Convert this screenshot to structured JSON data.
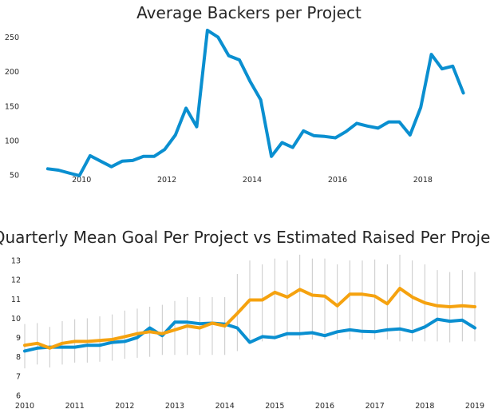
{
  "chart_data": [
    {
      "type": "line",
      "title": "Average Backers per Project",
      "xlabel": "",
      "ylabel": "",
      "xlim": [
        2008.65,
        2019.2
      ],
      "ylim": [
        35,
        268
      ],
      "grid": false,
      "xticks": [
        2010,
        2012,
        2014,
        2016,
        2018
      ],
      "yticks": [
        50,
        100,
        150,
        200,
        250
      ],
      "colors": {
        "line": "#0a8fd0"
      },
      "series": [
        {
          "x": [
            2009.21,
            2009.46,
            2009.7,
            2009.95,
            2010.2,
            2010.45,
            2010.7,
            2010.95,
            2011.2,
            2011.45,
            2011.7,
            2011.95,
            2012.2,
            2012.45,
            2012.7,
            2012.95,
            2013.2,
            2013.45,
            2013.7,
            2013.95,
            2014.2,
            2014.45,
            2014.7,
            2014.95,
            2015.2,
            2015.45,
            2015.7,
            2015.95,
            2016.2,
            2016.45,
            2016.7,
            2016.95,
            2017.2,
            2017.45,
            2017.7,
            2017.95,
            2018.2,
            2018.45,
            2018.7,
            2018.95
          ],
          "values": [
            59,
            57,
            53,
            49,
            78,
            70,
            62,
            70,
            71,
            77,
            77,
            87,
            108,
            147,
            120,
            260,
            250,
            223,
            217,
            186,
            159,
            77,
            97,
            90,
            114,
            107,
            106,
            104,
            113,
            125,
            121,
            118,
            127,
            127,
            108,
            148,
            225,
            204,
            208,
            169
          ]
        }
      ]
    },
    {
      "type": "line",
      "title": "Quarterly Mean Goal Per Project vs Estimated Raised Per Project",
      "xlabel": "",
      "ylabel": "",
      "xlim": [
        2010,
        2019
      ],
      "ylim": [
        5.5,
        13.5
      ],
      "grid": false,
      "xticks": [
        2010,
        2011,
        2012,
        2013,
        2014,
        2015,
        2016,
        2017,
        2018,
        2019
      ],
      "yticks": [
        6,
        7,
        8,
        9,
        10,
        11,
        12,
        13
      ],
      "colors": {
        "goal": "#0a8fd0",
        "raised": "#f5a20f",
        "errorbar": "#c8c8c8"
      },
      "x": [
        2010,
        2010.25,
        2010.5,
        2010.75,
        2011,
        2011.25,
        2011.5,
        2011.75,
        2012,
        2012.25,
        2012.5,
        2012.75,
        2013,
        2013.25,
        2013.5,
        2013.75,
        2014,
        2014.25,
        2014.5,
        2014.75,
        2015,
        2015.25,
        2015.5,
        2015.75,
        2016,
        2016.25,
        2016.5,
        2016.75,
        2017,
        2017.25,
        2017.5,
        2017.75,
        2018,
        2018.25,
        2018.5,
        2018.75,
        2019
      ],
      "series": [
        {
          "values": [
            8.3,
            8.45,
            8.5,
            8.5,
            8.5,
            8.6,
            8.6,
            8.75,
            8.8,
            9.0,
            9.5,
            9.1,
            9.8,
            9.8,
            9.72,
            9.75,
            9.7,
            9.5,
            8.75,
            9.05,
            9.0,
            9.2,
            9.2,
            9.25,
            9.1,
            9.3,
            9.4,
            9.32,
            9.3,
            9.4,
            9.45,
            9.3,
            9.55,
            9.95,
            9.85,
            9.9,
            9.5
          ]
        },
        {
          "values": [
            8.6,
            8.7,
            8.45,
            8.7,
            8.8,
            8.8,
            8.85,
            8.9,
            9.05,
            9.2,
            9.3,
            9.2,
            9.4,
            9.6,
            9.5,
            9.75,
            9.6,
            10.25,
            10.95,
            10.95,
            11.35,
            11.1,
            11.5,
            11.2,
            11.15,
            10.65,
            11.25,
            11.25,
            11.15,
            10.75,
            11.55,
            11.1,
            10.8,
            10.65,
            10.6,
            10.65,
            10.6
          ],
          "err_low": [
            7.4,
            7.6,
            7.45,
            7.6,
            7.7,
            7.7,
            7.75,
            7.8,
            7.9,
            7.95,
            8.0,
            8.1,
            8.1,
            8.1,
            8.1,
            8.1,
            8.1,
            8.3,
            8.7,
            8.8,
            8.9,
            8.9,
            8.9,
            8.9,
            8.9,
            8.9,
            8.9,
            8.9,
            8.9,
            8.9,
            8.8,
            8.8,
            8.8,
            8.8,
            8.75,
            8.8,
            8.8
          ],
          "err_high": [
            9.7,
            9.75,
            9.55,
            9.85,
            9.95,
            10.0,
            10.1,
            10.2,
            10.4,
            10.5,
            10.6,
            10.7,
            10.9,
            11.1,
            11.1,
            11.1,
            11.1,
            12.3,
            13.0,
            12.8,
            13.1,
            13.0,
            13.3,
            13.1,
            13.1,
            12.8,
            13.0,
            13.0,
            13.05,
            12.8,
            13.3,
            13.0,
            12.8,
            12.5,
            12.4,
            12.5,
            12.4
          ]
        }
      ]
    }
  ]
}
